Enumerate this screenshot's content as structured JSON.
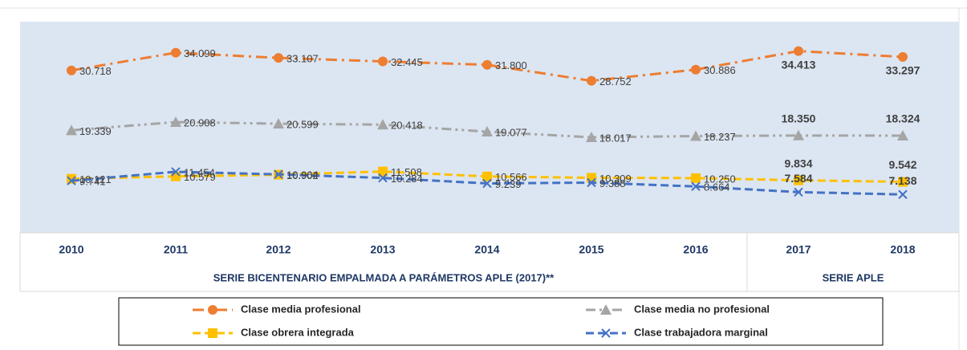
{
  "chart_data": {
    "type": "line",
    "categories": [
      "2010",
      "2011",
      "2012",
      "2013",
      "2014",
      "2015",
      "2016",
      "2017",
      "2018"
    ],
    "group_labels": [
      "SERIE BICENTENARIO EMPALMADA A PARÁMETROS APLE (2017)**",
      "SERIE APLE"
    ],
    "ylim": [
      0,
      40
    ],
    "series": [
      {
        "name": "Clase media profesional",
        "color": "#ed7d31",
        "marker": "circle",
        "dash": "dash-dot",
        "values": [
          30.718,
          34.099,
          33.107,
          32.445,
          31.8,
          28.752,
          30.886,
          34.413,
          33.297
        ],
        "value_labels": [
          "30.718",
          "34.099",
          "33.107",
          "32.445",
          "31.800",
          "28.752",
          "30.886",
          "34.413",
          "33.297"
        ]
      },
      {
        "name": "Clase media no profesional",
        "color": "#a5a5a5",
        "marker": "triangle",
        "dash": "dash-dot-dot",
        "values": [
          19.339,
          20.908,
          20.599,
          20.418,
          19.077,
          18.017,
          18.237,
          18.35,
          18.324
        ],
        "value_labels": [
          "19.339",
          "20.908",
          "20.599",
          "20.418",
          "19.077",
          "18.017",
          "18.237",
          "18.350",
          "18.324"
        ]
      },
      {
        "name": "Clase obrera integrada",
        "color": "#ffc000",
        "marker": "square",
        "dash": "dashed",
        "values": [
          10.121,
          10.579,
          10.902,
          11.508,
          10.566,
          10.309,
          10.25,
          9.834,
          9.542
        ],
        "value_labels": [
          "10.121",
          "10.579",
          "10.902",
          "11.508",
          "10.566",
          "10.309",
          "10.250",
          "9.834",
          "9.542"
        ]
      },
      {
        "name": "Clase trabajadora marginal",
        "color": "#4472c4",
        "marker": "x",
        "dash": "dashed",
        "values": [
          9.741,
          11.454,
          10.964,
          10.284,
          9.239,
          9.388,
          8.664,
          7.584,
          7.138
        ],
        "value_labels": [
          "9.741",
          "11.454",
          "10.964",
          "10.284",
          "9.239",
          "9.388",
          "8.664",
          "7.584",
          "7.138"
        ]
      }
    ]
  }
}
